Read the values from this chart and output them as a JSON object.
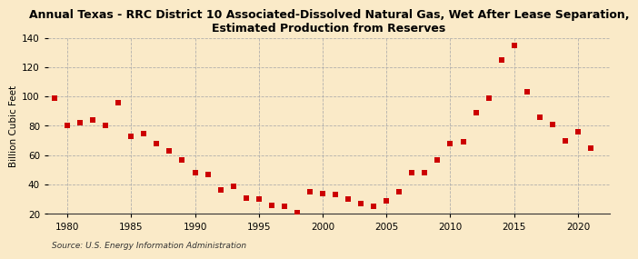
{
  "title": "Annual Texas - RRC District 10 Associated-Dissolved Natural Gas, Wet After Lease Separation,\nEstimated Production from Reserves",
  "ylabel": "Billion Cubic Feet",
  "source": "Source: U.S. Energy Information Administration",
  "years": [
    1979,
    1980,
    1981,
    1982,
    1983,
    1984,
    1985,
    1986,
    1987,
    1988,
    1989,
    1990,
    1991,
    1992,
    1993,
    1994,
    1995,
    1996,
    1997,
    1998,
    1999,
    2000,
    2001,
    2002,
    2003,
    2004,
    2005,
    2006,
    2007,
    2008,
    2009,
    2010,
    2011,
    2012,
    2013,
    2014,
    2015,
    2016,
    2017,
    2018,
    2019,
    2020,
    2021
  ],
  "values": [
    99,
    80,
    82,
    84,
    80,
    96,
    73,
    75,
    68,
    63,
    57,
    48,
    47,
    36,
    39,
    31,
    30,
    26,
    25,
    21,
    35,
    34,
    33,
    30,
    27,
    25,
    29,
    35,
    48,
    48,
    57,
    68,
    69,
    89,
    99,
    125,
    135,
    103,
    86,
    81,
    70,
    76,
    65
  ],
  "marker_color": "#cc0000",
  "marker_size": 25,
  "background_color": "#faeac8",
  "grid_color": "#aaaaaa",
  "ylim": [
    20,
    140
  ],
  "yticks": [
    20,
    40,
    60,
    80,
    100,
    120,
    140
  ],
  "xlim": [
    1978.5,
    2022.5
  ],
  "xticks": [
    1980,
    1985,
    1990,
    1995,
    2000,
    2005,
    2010,
    2015,
    2020
  ]
}
